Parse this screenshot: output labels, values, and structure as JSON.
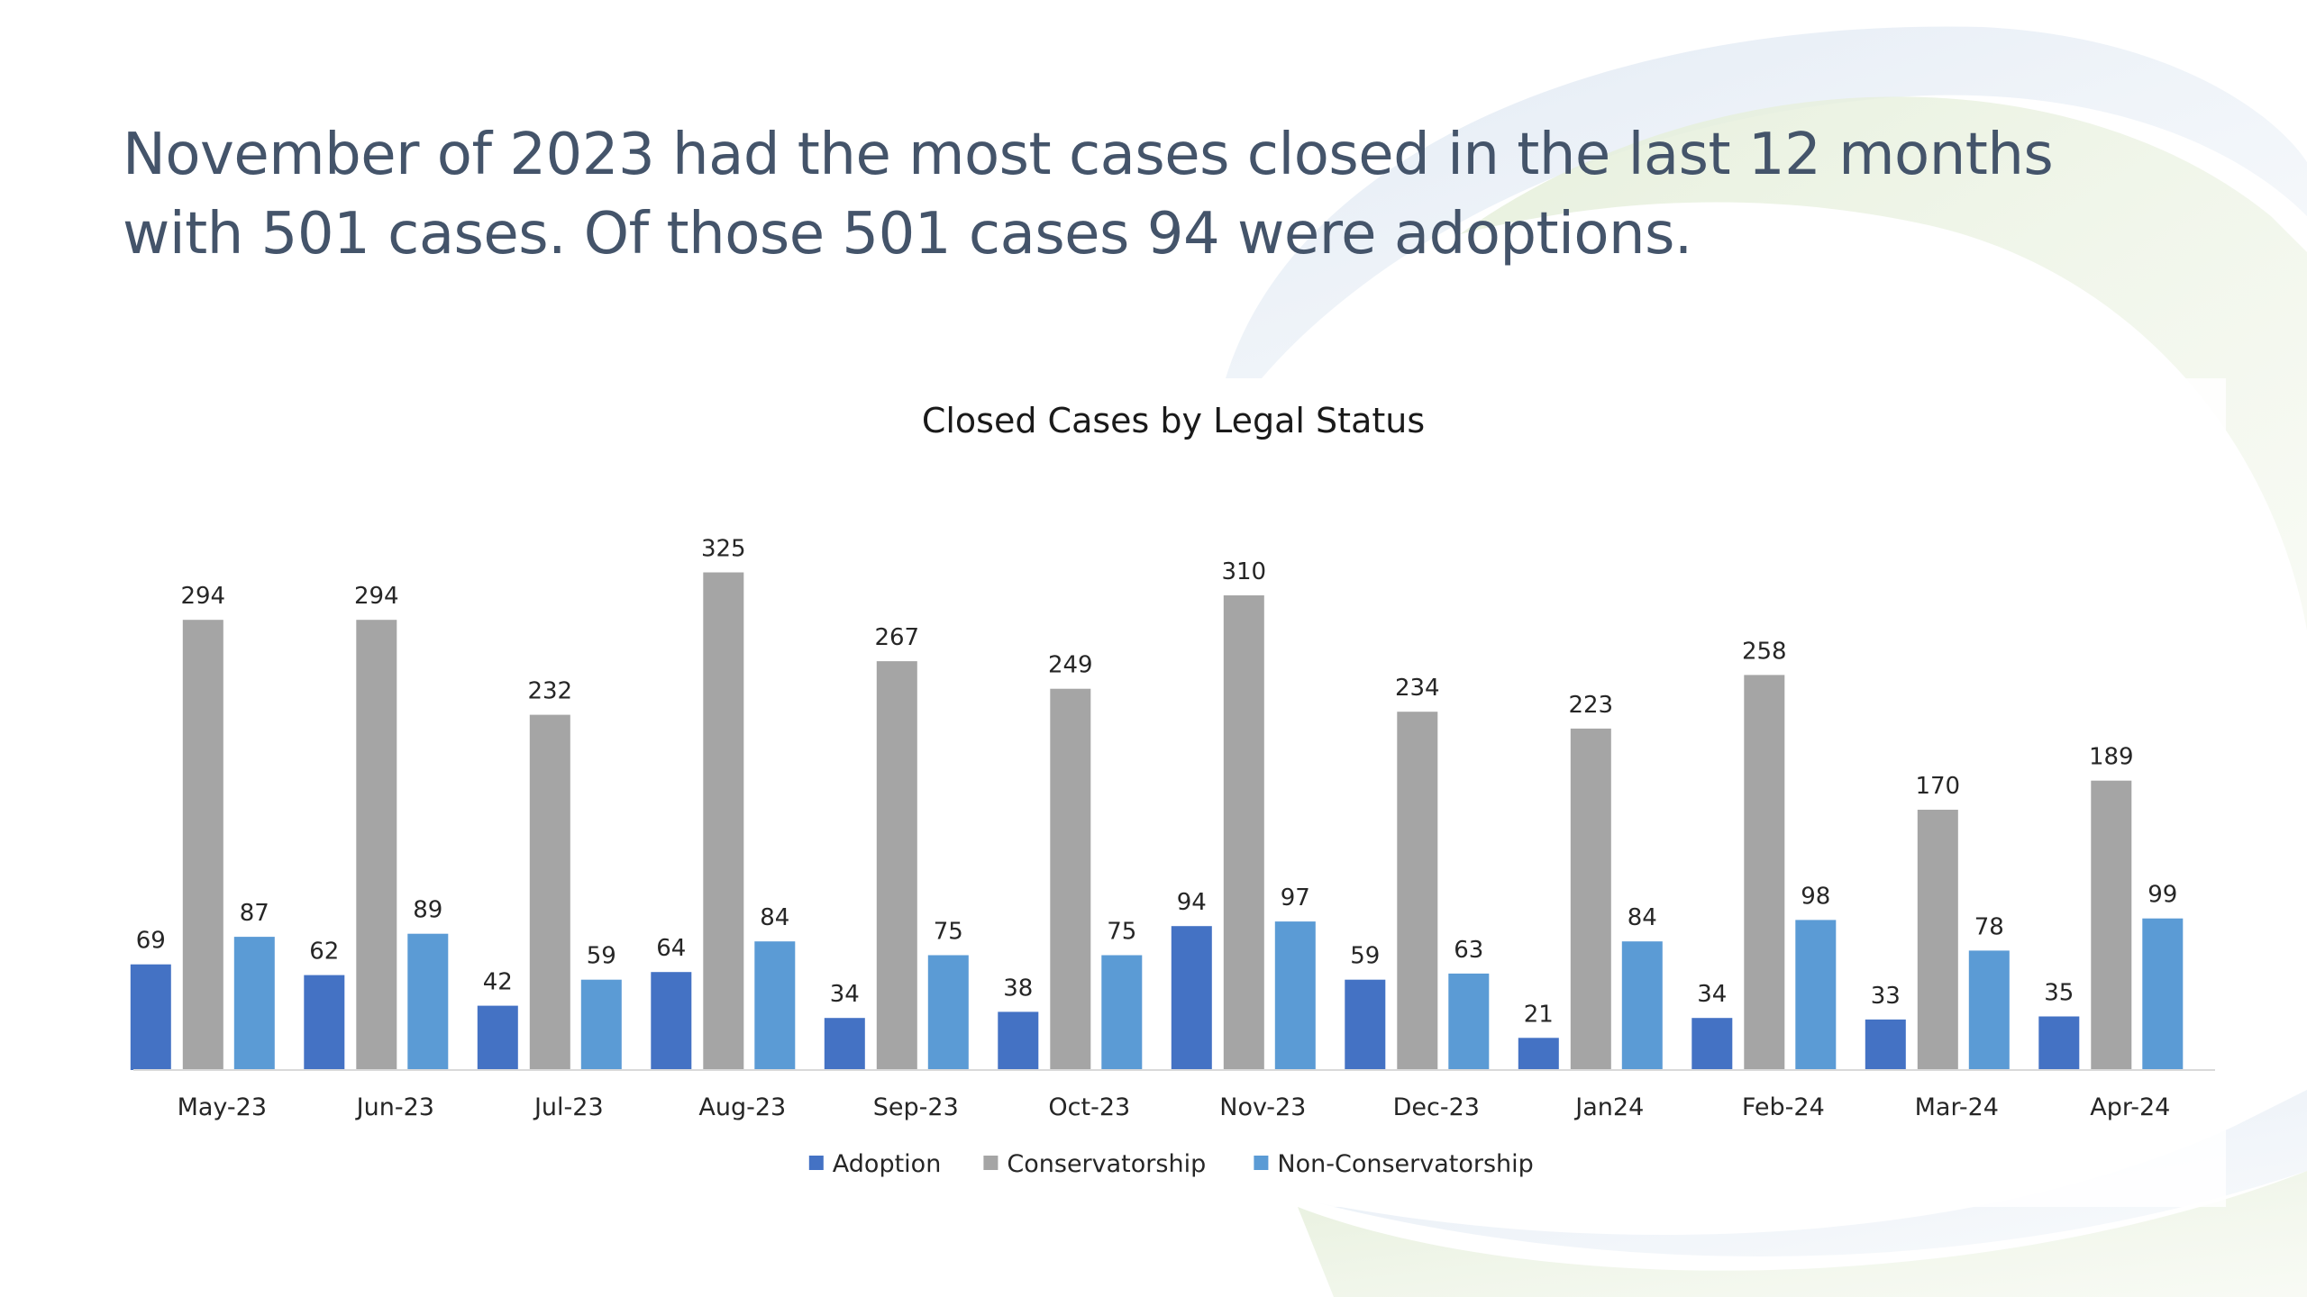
{
  "slide": {
    "headline": "November of 2023 had the most cases closed in the last 12 months with 501 cases. Of those 501 cases 94 were adoptions."
  },
  "chart_data": {
    "type": "bar",
    "title": "Closed Cases by Legal Status",
    "xlabel": "",
    "ylabel": "",
    "ylim": [
      0,
      325
    ],
    "grid": false,
    "legend_position": "bottom",
    "categories": [
      "May-23",
      "Jun-23",
      "Jul-23",
      "Aug-23",
      "Sep-23",
      "Oct-23",
      "Nov-23",
      "Dec-23",
      "Jan24",
      "Feb-24",
      "Mar-24",
      "Apr-24"
    ],
    "series": [
      {
        "name": "Adoption",
        "color": "#4472c4",
        "values": [
          69,
          62,
          42,
          64,
          34,
          38,
          94,
          59,
          21,
          34,
          33,
          35
        ]
      },
      {
        "name": "Conservatorship",
        "color": "#a5a5a5",
        "values": [
          294,
          294,
          232,
          325,
          267,
          249,
          310,
          234,
          223,
          258,
          170,
          189
        ]
      },
      {
        "name": "Non-Conservatorship",
        "color": "#5b9bd5",
        "values": [
          87,
          89,
          59,
          84,
          75,
          75,
          97,
          63,
          84,
          98,
          78,
          99
        ]
      }
    ]
  }
}
